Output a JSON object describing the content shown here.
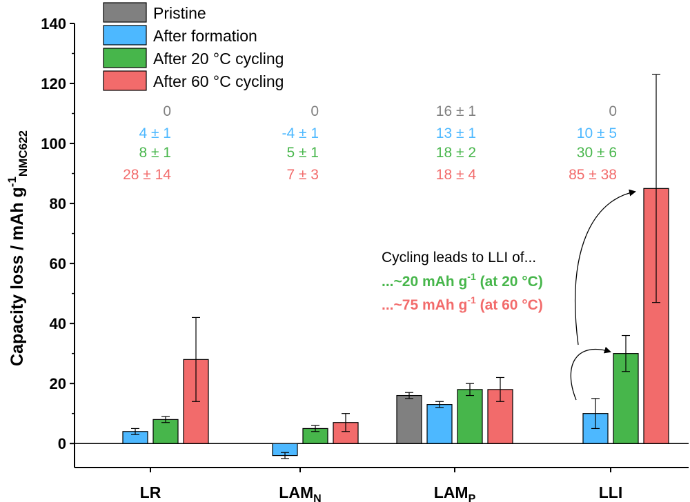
{
  "chart_data": {
    "type": "bar",
    "title": "",
    "xlabel": "",
    "ylabel": "Capacity loss / mAh g",
    "ylabel_sup": "-1",
    "ylabel_sub": "NMC622",
    "ylim": [
      -8,
      140
    ],
    "yticks": [
      0,
      20,
      40,
      60,
      80,
      100,
      120,
      140
    ],
    "categories": [
      {
        "base": "LR",
        "sub": ""
      },
      {
        "base": "LAM",
        "sub": "N"
      },
      {
        "base": "LAM",
        "sub": "P"
      },
      {
        "base": "LLI",
        "sub": ""
      }
    ],
    "series": [
      {
        "name": "Pristine",
        "color": "#808080",
        "values": [
          null,
          null,
          16,
          null
        ],
        "errors": [
          null,
          null,
          1,
          null
        ],
        "labels": [
          "0",
          "0",
          "16 ± 1",
          "0"
        ]
      },
      {
        "name": "After formation",
        "color": "#4db8ff",
        "values": [
          4,
          -4,
          13,
          10
        ],
        "errors": [
          1,
          1,
          1,
          5
        ],
        "labels": [
          "4 ± 1",
          "-4 ± 1",
          "13 ± 1",
          "10 ± 5"
        ]
      },
      {
        "name": "After 20 °C cycling",
        "color": "#47b64b",
        "values": [
          8,
          5,
          18,
          30
        ],
        "errors": [
          1,
          1,
          2,
          6
        ],
        "labels": [
          "8 ± 1",
          "5 ± 1",
          "18 ± 2",
          "30 ± 6"
        ]
      },
      {
        "name": "After 60 °C cycling",
        "color": "#f26b6b",
        "values": [
          28,
          7,
          18,
          85
        ],
        "errors": [
          14,
          3,
          4,
          38
        ],
        "labels": [
          "28 ± 14",
          "7 ± 3",
          "18 ± 4",
          "85 ± 38"
        ]
      }
    ],
    "legend_position": "top-left",
    "annotation": {
      "line1": "Cycling leads to LLI of...",
      "line2_pre": "...~20 mAh g",
      "line2_sup": "-1",
      "line2_post": " (at 20 °C)",
      "line3_pre": "...~75 mAh g",
      "line3_sup": "-1",
      "line3_post": " (at 60 °C)"
    }
  }
}
